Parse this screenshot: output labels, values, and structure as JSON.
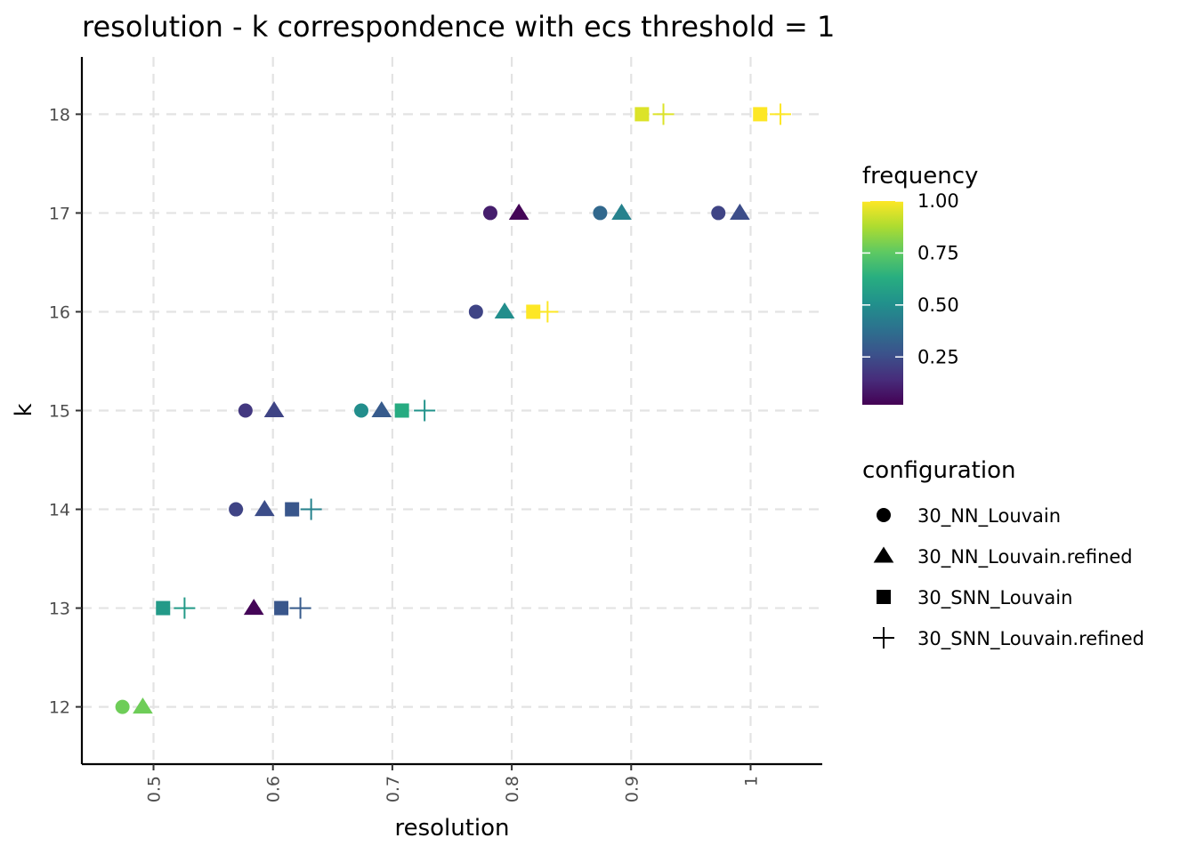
{
  "chart_data": {
    "type": "scatter",
    "title": "resolution - k correspondence with ecs threshold = 1",
    "xlabel": "resolution",
    "ylabel": "k",
    "xlim": [
      0.44,
      1.06
    ],
    "ylim": [
      11.42,
      18.58
    ],
    "x_ticks": [
      0.5,
      0.6,
      0.7,
      0.8,
      0.9,
      1
    ],
    "x_tick_labels": [
      "0.5",
      "0.6",
      "0.7",
      "0.8",
      "0.9",
      "1"
    ],
    "y_ticks": [
      12,
      13,
      14,
      15,
      16,
      17,
      18
    ],
    "y_tick_labels": [
      "12",
      "13",
      "14",
      "15",
      "16",
      "17",
      "18"
    ],
    "grid": true,
    "color_legend": {
      "title": "frequency",
      "min": 0.02,
      "max": 1.0,
      "ticks": [
        0.25,
        0.5,
        0.75,
        1.0
      ],
      "tick_labels": [
        "0.25",
        "0.50",
        "0.75",
        "1.00"
      ],
      "palette": [
        "#440154",
        "#472d7b",
        "#3b528b",
        "#2c728e",
        "#21918c",
        "#28ae80",
        "#5ec962",
        "#addc30",
        "#fde725"
      ]
    },
    "shape_legend": {
      "title": "configuration",
      "entries": [
        {
          "name": "30_NN_Louvain",
          "shape": "circle"
        },
        {
          "name": "30_NN_Louvain.refined",
          "shape": "triangle"
        },
        {
          "name": "30_SNN_Louvain",
          "shape": "square"
        },
        {
          "name": "30_SNN_Louvain.refined",
          "shape": "plus"
        }
      ]
    },
    "legend_placement": "right",
    "series": [
      {
        "name": "30_NN_Louvain",
        "shape": "circle",
        "points": [
          {
            "x": 0.474,
            "y": 12,
            "frequency": 0.78
          },
          {
            "x": 0.569,
            "y": 14,
            "frequency": 0.22
          },
          {
            "x": 0.577,
            "y": 15,
            "frequency": 0.18
          },
          {
            "x": 0.674,
            "y": 15,
            "frequency": 0.5
          },
          {
            "x": 0.77,
            "y": 16,
            "frequency": 0.22
          },
          {
            "x": 0.782,
            "y": 17,
            "frequency": 0.1
          },
          {
            "x": 0.874,
            "y": 17,
            "frequency": 0.35
          },
          {
            "x": 0.973,
            "y": 17,
            "frequency": 0.22
          }
        ]
      },
      {
        "name": "30_NN_Louvain.refined",
        "shape": "triangle",
        "points": [
          {
            "x": 0.491,
            "y": 12,
            "frequency": 0.78
          },
          {
            "x": 0.584,
            "y": 13,
            "frequency": 0.03
          },
          {
            "x": 0.593,
            "y": 14,
            "frequency": 0.25
          },
          {
            "x": 0.601,
            "y": 15,
            "frequency": 0.22
          },
          {
            "x": 0.691,
            "y": 15,
            "frequency": 0.3
          },
          {
            "x": 0.794,
            "y": 16,
            "frequency": 0.5
          },
          {
            "x": 0.806,
            "y": 17,
            "frequency": 0.03
          },
          {
            "x": 0.892,
            "y": 17,
            "frequency": 0.45
          },
          {
            "x": 0.991,
            "y": 17,
            "frequency": 0.25
          }
        ]
      },
      {
        "name": "30_SNN_Louvain",
        "shape": "square",
        "points": [
          {
            "x": 0.508,
            "y": 13,
            "frequency": 0.55
          },
          {
            "x": 0.607,
            "y": 13,
            "frequency": 0.28
          },
          {
            "x": 0.616,
            "y": 14,
            "frequency": 0.28
          },
          {
            "x": 0.708,
            "y": 15,
            "frequency": 0.62
          },
          {
            "x": 0.818,
            "y": 16,
            "frequency": 1.0
          },
          {
            "x": 0.909,
            "y": 18,
            "frequency": 0.95
          },
          {
            "x": 1.008,
            "y": 18,
            "frequency": 1.0
          }
        ]
      },
      {
        "name": "30_SNN_Louvain.refined",
        "shape": "plus",
        "points": [
          {
            "x": 0.526,
            "y": 13,
            "frequency": 0.55
          },
          {
            "x": 0.623,
            "y": 13,
            "frequency": 0.3
          },
          {
            "x": 0.632,
            "y": 14,
            "frequency": 0.45
          },
          {
            "x": 0.727,
            "y": 15,
            "frequency": 0.52
          },
          {
            "x": 0.83,
            "y": 16,
            "frequency": 1.0
          },
          {
            "x": 0.927,
            "y": 18,
            "frequency": 0.95
          },
          {
            "x": 1.025,
            "y": 18,
            "frequency": 1.0
          }
        ]
      }
    ]
  }
}
